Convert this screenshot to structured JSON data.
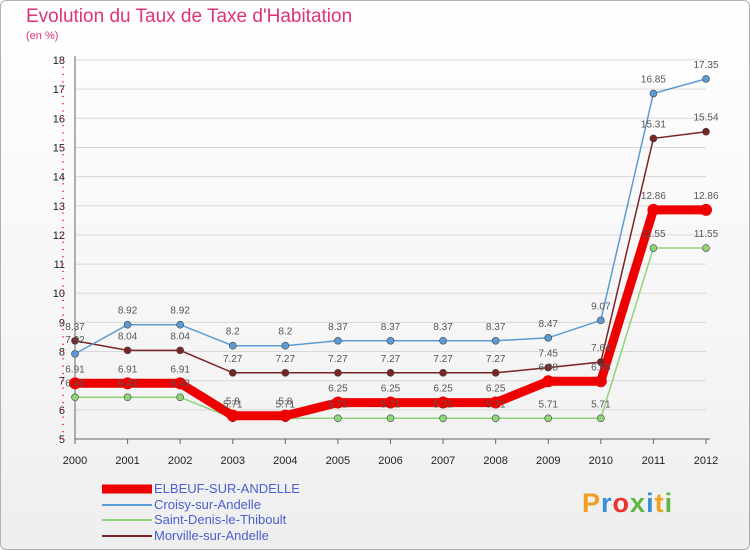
{
  "chart_data": {
    "type": "line",
    "title": "Evolution du Taux de Taxe d'Habitation",
    "subtitle": "(en %)",
    "xlabel": "",
    "ylabel": "",
    "ylim": [
      5,
      18
    ],
    "yticks": [
      "5",
      "6",
      "7",
      "8",
      "9",
      "10",
      "11",
      "12",
      "13",
      "14",
      "15",
      "16",
      "17",
      "18"
    ],
    "x": [
      "2000",
      "2001",
      "2002",
      "2003",
      "2004",
      "2005",
      "2006",
      "2007",
      "2008",
      "2009",
      "2010",
      "2011",
      "2012"
    ],
    "series": [
      {
        "name": "ELBEUF-SUR-ANDELLE",
        "color": "#ee0000",
        "values": [
          6.91,
          6.91,
          6.91,
          5.8,
          5.8,
          6.25,
          6.25,
          6.25,
          6.25,
          6.98,
          6.98,
          12.86,
          12.86
        ],
        "labels": [
          "6.91",
          "6.91",
          "6.91",
          "5.8",
          "5.8",
          "6.25",
          "6.25",
          "6.25",
          "6.25",
          "6.98",
          "6.98",
          "12.86",
          "12.86"
        ]
      },
      {
        "name": "Croisy-sur-Andelle",
        "color": "#5b9bd5",
        "values": [
          7.92,
          8.92,
          8.92,
          8.2,
          8.2,
          8.37,
          8.37,
          8.37,
          8.37,
          8.47,
          9.07,
          16.85,
          17.35
        ],
        "labels": [
          "7.92",
          "8.92",
          "8.92",
          "8.2",
          "8.2",
          "8.37",
          "8.37",
          "8.37",
          "8.37",
          "8.47",
          "9.07",
          "16.85",
          "17.35"
        ]
      },
      {
        "name": "Saint-Denis-le-Thiboult",
        "color": "#8fd47a",
        "values": [
          6.43,
          6.43,
          6.43,
          5.71,
          5.71,
          5.71,
          5.71,
          5.71,
          5.71,
          5.71,
          5.71,
          11.55,
          11.55
        ],
        "labels": [
          "6.43",
          "6.43",
          "6.43",
          "5.71",
          "5.71",
          "5.71",
          "5.71",
          "5.71",
          "5.71",
          "5.71",
          "5.71",
          "11.55",
          "11.55"
        ]
      },
      {
        "name": "Morville-sur-Andelle",
        "color": "#7b2424",
        "values": [
          8.37,
          8.04,
          8.04,
          7.27,
          7.27,
          7.27,
          7.27,
          7.27,
          7.27,
          7.45,
          7.64,
          15.31,
          15.54
        ],
        "labels": [
          "8.37",
          "8.04",
          "8.04",
          "7.27",
          "7.27",
          "7.27",
          "7.27",
          "7.27",
          "7.27",
          "7.45",
          "7.64",
          "15.31",
          "15.54"
        ]
      }
    ],
    "legend_position": "bottom-left"
  },
  "branding": {
    "logo_letters": [
      "P",
      "r",
      "o",
      "x",
      "i",
      "t",
      "i"
    ],
    "logo_colors": [
      "#f0a020",
      "#3a8fd8",
      "#e8342c",
      "#60b840",
      "#3a8fd8",
      "#f0a020",
      "#60b840"
    ]
  }
}
